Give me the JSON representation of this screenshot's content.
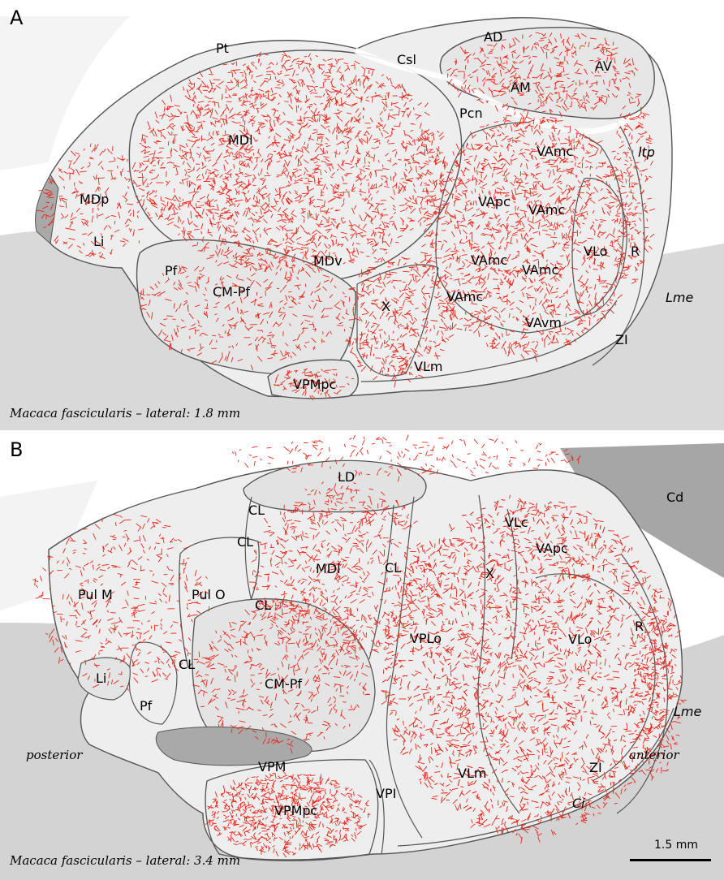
{
  "colors": {
    "fiber": "#e8271a",
    "outline": "#555555",
    "tissue": "#eeeeee",
    "background": "#ffffff",
    "ventricle": "#a9a9a9"
  },
  "panel_a": {
    "letter": "A",
    "caption": "Macaca fascicularis – lateral: 1.8 mm",
    "labels": {
      "pt": "Pt",
      "ad": "AD",
      "csl": "Csl",
      "av": "AV",
      "am": "AM",
      "pcn": "Pcn",
      "mdl": "MDl",
      "vamc1": "VAmc",
      "itp": "ltp",
      "mdp": "MDp",
      "vapc": "VApc",
      "vamc2": "VAmc",
      "li": "Li",
      "vlo": "VLo",
      "r": "R",
      "mdv": "MDv",
      "vamc3": "VAmc",
      "vamc4": "VAmc",
      "pf": "Pf",
      "cmpf": "CM-Pf",
      "x": "X",
      "vamc5": "VAmc",
      "lme": "Lme",
      "vavm": "VAvm",
      "zi": "ZI",
      "vlm": "VLm",
      "vpmpc": "VPMpc"
    }
  },
  "panel_b": {
    "letter": "B",
    "caption": "Macaca fascicularis – lateral: 3.4 mm",
    "labels": {
      "ld": "LD",
      "cd": "Cd",
      "cl1": "CL",
      "vlc": "VLc",
      "cl2": "CL",
      "vapc": "VApc",
      "mdl": "MDl",
      "cl3": "CL",
      "x": "X",
      "pulm": "Pul M",
      "pulo": "Pul O",
      "cl4": "CL",
      "r": "R",
      "vplo": "VPLo",
      "vlo": "VLo",
      "cl5": "CL",
      "li": "Li",
      "cmpf": "CM-Pf",
      "pf": "Pf",
      "lme": "Lme",
      "posterior": "posterior",
      "anterior": "anterior",
      "vpm": "VPM",
      "vlm": "VLm",
      "zi": "ZI",
      "vpi": "VPI",
      "vpmpc": "VPMpc",
      "ci": "Ci"
    },
    "scale_bar": "1.5 mm"
  }
}
